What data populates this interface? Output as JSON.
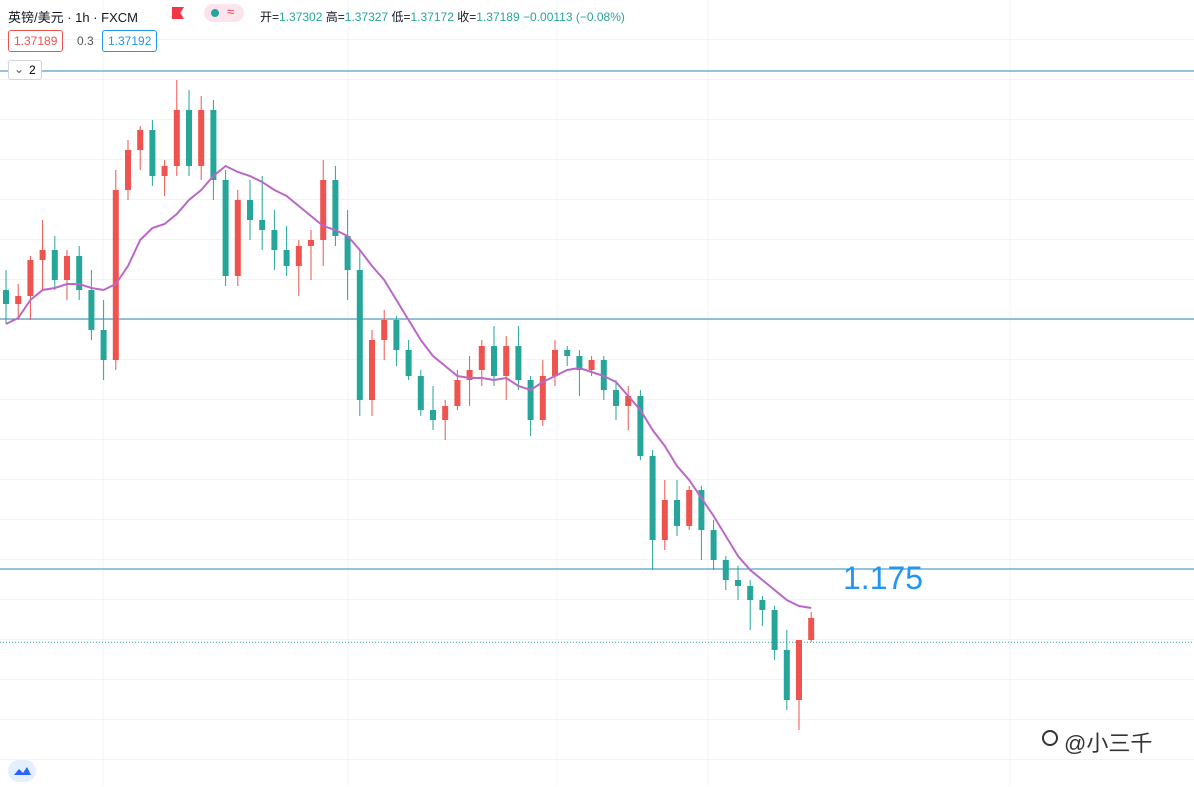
{
  "header": {
    "symbol": "英镑/美元 · 1h · FXCM",
    "ohlc": [
      {
        "label": "开=",
        "value": 1.37302
      },
      {
        "label": "高=",
        "value": 1.37327
      },
      {
        "label": "低=",
        "value": 1.37172
      },
      {
        "label": "收=",
        "value": 1.37189
      }
    ],
    "change": "−0.00113 (−0.08%)",
    "bid": 1.37189,
    "spread": 0.3,
    "ask": 1.37192,
    "collapse": "2",
    "watermark": "@小三千"
  },
  "chart_data": {
    "type": "candlestick",
    "up_color": "#ef5350",
    "down_color": "#26a69a",
    "ylim": [
      1.3647,
      1.404
    ],
    "open": [
      1.3895,
      1.3888,
      1.3892,
      1.391,
      1.3915,
      1.39,
      1.3912,
      1.3895,
      1.3875,
      1.386,
      1.3945,
      1.3965,
      1.3975,
      1.3952,
      1.3957,
      1.3985,
      1.3957,
      1.3985,
      1.395,
      1.3902,
      1.394,
      1.393,
      1.3925,
      1.3915,
      1.3907,
      1.3917,
      1.392,
      1.395,
      1.3922,
      1.3905,
      1.384,
      1.387,
      1.388,
      1.3865,
      1.3852,
      1.3835,
      1.383,
      1.3837,
      1.385,
      1.3855,
      1.3867,
      1.3852,
      1.3867,
      1.385,
      1.383,
      1.3852,
      1.3865,
      1.3862,
      1.3855,
      1.386,
      1.3845,
      1.3837,
      1.3842,
      1.3812,
      1.377,
      1.379,
      1.3777,
      1.3795,
      1.3775,
      1.376,
      1.375,
      1.3747,
      1.374,
      1.3735,
      1.3715,
      1.369,
      1.372
    ],
    "high": [
      1.3905,
      1.3898,
      1.3912,
      1.393,
      1.3922,
      1.3915,
      1.3917,
      1.3905,
      1.389,
      1.3955,
      1.397,
      1.3977,
      1.398,
      1.396,
      1.4,
      1.3995,
      1.3992,
      1.399,
      1.3955,
      1.3945,
      1.395,
      1.3952,
      1.3935,
      1.3927,
      1.392,
      1.3925,
      1.396,
      1.3957,
      1.3935,
      1.3915,
      1.3875,
      1.3885,
      1.3882,
      1.387,
      1.3855,
      1.3847,
      1.384,
      1.3855,
      1.3862,
      1.387,
      1.3877,
      1.3872,
      1.3877,
      1.3852,
      1.386,
      1.387,
      1.3867,
      1.3865,
      1.3862,
      1.3862,
      1.385,
      1.3847,
      1.3845,
      1.3815,
      1.38,
      1.38,
      1.3797,
      1.3797,
      1.378,
      1.3762,
      1.3757,
      1.375,
      1.3742,
      1.3737,
      1.3725,
      1.372,
      1.3734
    ],
    "low": [
      1.3878,
      1.388,
      1.388,
      1.3895,
      1.3895,
      1.389,
      1.389,
      1.387,
      1.385,
      1.3855,
      1.394,
      1.3955,
      1.3947,
      1.3942,
      1.3952,
      1.3952,
      1.395,
      1.394,
      1.3897,
      1.3897,
      1.392,
      1.3915,
      1.3905,
      1.3902,
      1.3892,
      1.39,
      1.3907,
      1.3917,
      1.389,
      1.3832,
      1.3832,
      1.386,
      1.3857,
      1.385,
      1.3832,
      1.3825,
      1.382,
      1.3835,
      1.3837,
      1.3847,
      1.3847,
      1.384,
      1.3845,
      1.3822,
      1.3827,
      1.3847,
      1.3857,
      1.3842,
      1.3852,
      1.384,
      1.383,
      1.3825,
      1.381,
      1.3755,
      1.3765,
      1.3772,
      1.3775,
      1.376,
      1.3755,
      1.3745,
      1.374,
      1.3725,
      1.3727,
      1.371,
      1.3685,
      1.3675,
      1.3719
    ],
    "close": [
      1.3888,
      1.3892,
      1.391,
      1.3915,
      1.39,
      1.3912,
      1.3895,
      1.3875,
      1.386,
      1.3945,
      1.3965,
      1.3975,
      1.3952,
      1.3957,
      1.3985,
      1.3957,
      1.3985,
      1.395,
      1.3902,
      1.394,
      1.393,
      1.3925,
      1.3915,
      1.3907,
      1.3917,
      1.392,
      1.395,
      1.3922,
      1.3905,
      1.384,
      1.387,
      1.388,
      1.3865,
      1.3852,
      1.3835,
      1.383,
      1.3837,
      1.385,
      1.3855,
      1.3867,
      1.3852,
      1.3867,
      1.385,
      1.383,
      1.3852,
      1.3865,
      1.3862,
      1.3855,
      1.386,
      1.3845,
      1.3837,
      1.3842,
      1.3812,
      1.377,
      1.379,
      1.3777,
      1.3795,
      1.3775,
      1.376,
      1.375,
      1.3747,
      1.374,
      1.3735,
      1.3715,
      1.369,
      1.372,
      1.3731
    ],
    "series": [
      {
        "color": "#ba68c8",
        "values": [
          1.3878,
          1.3881,
          1.389,
          1.3895,
          1.3896,
          1.3898,
          1.3898,
          1.3896,
          1.3895,
          1.3898,
          1.3907,
          1.392,
          1.3926,
          1.3928,
          1.3933,
          1.394,
          1.3945,
          1.3952,
          1.3957,
          1.3954,
          1.3952,
          1.3949,
          1.3945,
          1.3942,
          1.3937,
          1.3932,
          1.3927,
          1.3925,
          1.3922,
          1.3915,
          1.3907,
          1.39,
          1.389,
          1.388,
          1.387,
          1.3862,
          1.3857,
          1.3852,
          1.3851,
          1.3851,
          1.385,
          1.3851,
          1.3847,
          1.3845,
          1.3849,
          1.3852,
          1.3855,
          1.3856,
          1.3854,
          1.3852,
          1.3849,
          1.3842,
          1.3835,
          1.3825,
          1.3817,
          1.3807,
          1.38,
          1.3791,
          1.3782,
          1.3772,
          1.3762,
          1.3755,
          1.375,
          1.3745,
          1.374,
          1.3737,
          1.3736
        ]
      }
    ],
    "hlines": [
      1.40045,
      1.38805,
      1.37555
    ],
    "hline_color": "#2e86b8",
    "annotation": {
      "text": "1.175",
      "color": "#2196f3"
    }
  }
}
